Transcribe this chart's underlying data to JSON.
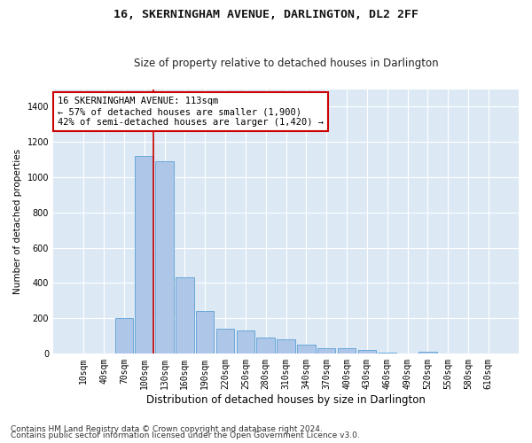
{
  "title": "16, SKERNINGHAM AVENUE, DARLINGTON, DL2 2FF",
  "subtitle": "Size of property relative to detached houses in Darlington",
  "xlabel": "Distribution of detached houses by size in Darlington",
  "ylabel": "Number of detached properties",
  "footnote1": "Contains HM Land Registry data © Crown copyright and database right 2024.",
  "footnote2": "Contains public sector information licensed under the Open Government Licence v3.0.",
  "bar_labels": [
    "10sqm",
    "40sqm",
    "70sqm",
    "100sqm",
    "130sqm",
    "160sqm",
    "190sqm",
    "220sqm",
    "250sqm",
    "280sqm",
    "310sqm",
    "340sqm",
    "370sqm",
    "400sqm",
    "430sqm",
    "460sqm",
    "490sqm",
    "520sqm",
    "550sqm",
    "580sqm",
    "610sqm"
  ],
  "bar_values": [
    0,
    0,
    200,
    1120,
    1090,
    430,
    240,
    140,
    130,
    90,
    80,
    50,
    30,
    30,
    20,
    5,
    0,
    10,
    0,
    0,
    0
  ],
  "bar_color": "#aec6e8",
  "bar_edge_color": "#5a9fd4",
  "background_color": "#dce9f5",
  "grid_color": "#ffffff",
  "annotation_box_text": "16 SKERNINGHAM AVENUE: 113sqm\n← 57% of detached houses are smaller (1,900)\n42% of semi-detached houses are larger (1,420) →",
  "annotation_box_color": "#ffffff",
  "annotation_box_edge_color": "#cc0000",
  "vline_x": 3.43,
  "vline_color": "#cc0000",
  "ylim": [
    0,
    1500
  ],
  "yticks": [
    0,
    200,
    400,
    600,
    800,
    1000,
    1200,
    1400
  ],
  "title_fontsize": 9.5,
  "subtitle_fontsize": 8.5,
  "xlabel_fontsize": 8.5,
  "ylabel_fontsize": 7.5,
  "tick_fontsize": 7,
  "annotation_fontsize": 7.5,
  "footnote_fontsize": 6.5
}
